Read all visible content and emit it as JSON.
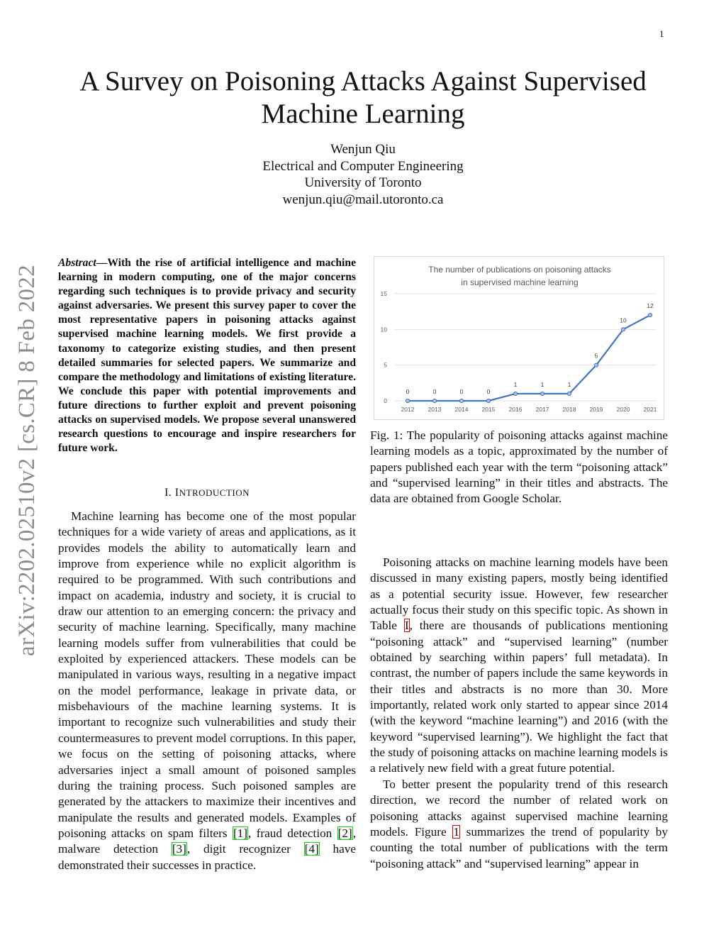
{
  "page_number": "1",
  "title": "A Survey on Poisoning Attacks Against Supervised Machine Learning",
  "authors": [
    "Wenjun Qiu",
    "Electrical and Computer Engineering",
    "University of Toronto",
    "wenjun.qiu@mail.utoronto.ca"
  ],
  "arxiv_stamp": "arXiv:2202.02510v2  [cs.CR]  8 Feb 2022",
  "abstract": {
    "label": "Abstract",
    "text": "—With the rise of artificial intelligence and machine learning in modern computing, one of the major concerns regarding such techniques is to provide privacy and security against adversaries. We present this survey paper to cover the most representative papers in poisoning attacks against supervised machine learning models. We first provide a taxonomy to categorize existing studies, and then present detailed summaries for selected papers. We summarize and compare the methodology and limitations of existing literature. We conclude this paper with potential improvements and future directions to further exploit and prevent poisoning attacks on supervised models. We propose several unanswered research questions to encourage and inspire researchers for future work."
  },
  "section1": {
    "number": "I.",
    "title_first": "I",
    "title_rest": "NTRODUCTION"
  },
  "left_paragraphs": [
    [
      {
        "t": "Machine learning has become one of the most popular techniques for a wide variety of areas and applications, as it provides models the ability to automatically learn and improve from experience while no explicit algorithm is required to be programmed. With such contributions and impact on academia, industry and society, it is crucial to draw our attention to an emerging concern: the privacy and security of machine learning. Specifically, many machine learning models suffer from vulnerabilities that could be exploited by experienced attackers. These models can be manipulated in various ways, resulting in a negative impact on the model performance, leakage in private data, or misbehaviours of the machine learning systems. It is important to recognize such vulnerabilities and study their countermeasures to prevent model corruptions. In this paper, we focus on the setting of poisoning attacks, where adversaries inject a small amount of poisoned samples during the training process. Such poisoned samples are generated by the attackers to maximize their incentives and manipulate the results and generated models. Examples of poisoning attacks on spam filters "
      },
      {
        "r": "[1]",
        "c": "green"
      },
      {
        "t": ", fraud detection "
      },
      {
        "r": "[2]",
        "c": "green"
      },
      {
        "t": ", malware detection "
      },
      {
        "r": "[3]",
        "c": "green"
      },
      {
        "t": ", digit recognizer "
      },
      {
        "r": "[4]",
        "c": "green"
      },
      {
        "t": " have demonstrated their successes in practice."
      }
    ]
  ],
  "figure_caption": "Fig. 1: The popularity of poisoning attacks against machine learning models as a topic, approximated by the number of papers published each year with the term “poisoning attack” and “supervised learning” in their titles and abstracts. The data are obtained from Google Scholar.",
  "right_paragraphs": [
    [
      {
        "t": "Poisoning attacks on machine learning models have been discussed in many existing papers, mostly being identified as a potential security issue. However, few researcher actually focus their study on this specific topic. As shown in Table "
      },
      {
        "r": "I",
        "c": "red"
      },
      {
        "t": ", there are thousands of publications mentioning “poisoning attack” and “supervised learning” (number obtained by searching within papers’ full metadata). In contrast, the number of papers include the same keywords in their titles and abstracts is no more than 30. More importantly, related work only started to appear since 2014 (with the keyword “machine learning”) and 2016 (with the keyword “supervised learning”). We highlight the fact that the study of poisoning attacks on machine learning models is a relatively new field with a great future potential."
      }
    ],
    [
      {
        "t": "To better present the popularity trend of this research direction, we record the number of related work on poisoning attacks against supervised machine learning models. Figure "
      },
      {
        "r": "1",
        "c": "red"
      },
      {
        "t": " summarizes the trend of popularity by counting the total number of publications with the term “poisoning attack” and “supervised learning” appear in"
      }
    ]
  ],
  "chart_data": {
    "type": "line",
    "title": "The number of publications on poisoning attacks in supervised machine learning",
    "categories": [
      "2012",
      "2013",
      "2014",
      "2015",
      "2016",
      "2017",
      "2018",
      "2019",
      "2020",
      "2021"
    ],
    "values": [
      0,
      0,
      0,
      0,
      1,
      1,
      1,
      5,
      10,
      12
    ],
    "ylim": [
      0,
      15
    ],
    "yticks": [
      "0",
      "5",
      "10",
      "15"
    ],
    "grid": true,
    "data_labels": true,
    "line_color": "#4472c4",
    "legend": "none"
  }
}
